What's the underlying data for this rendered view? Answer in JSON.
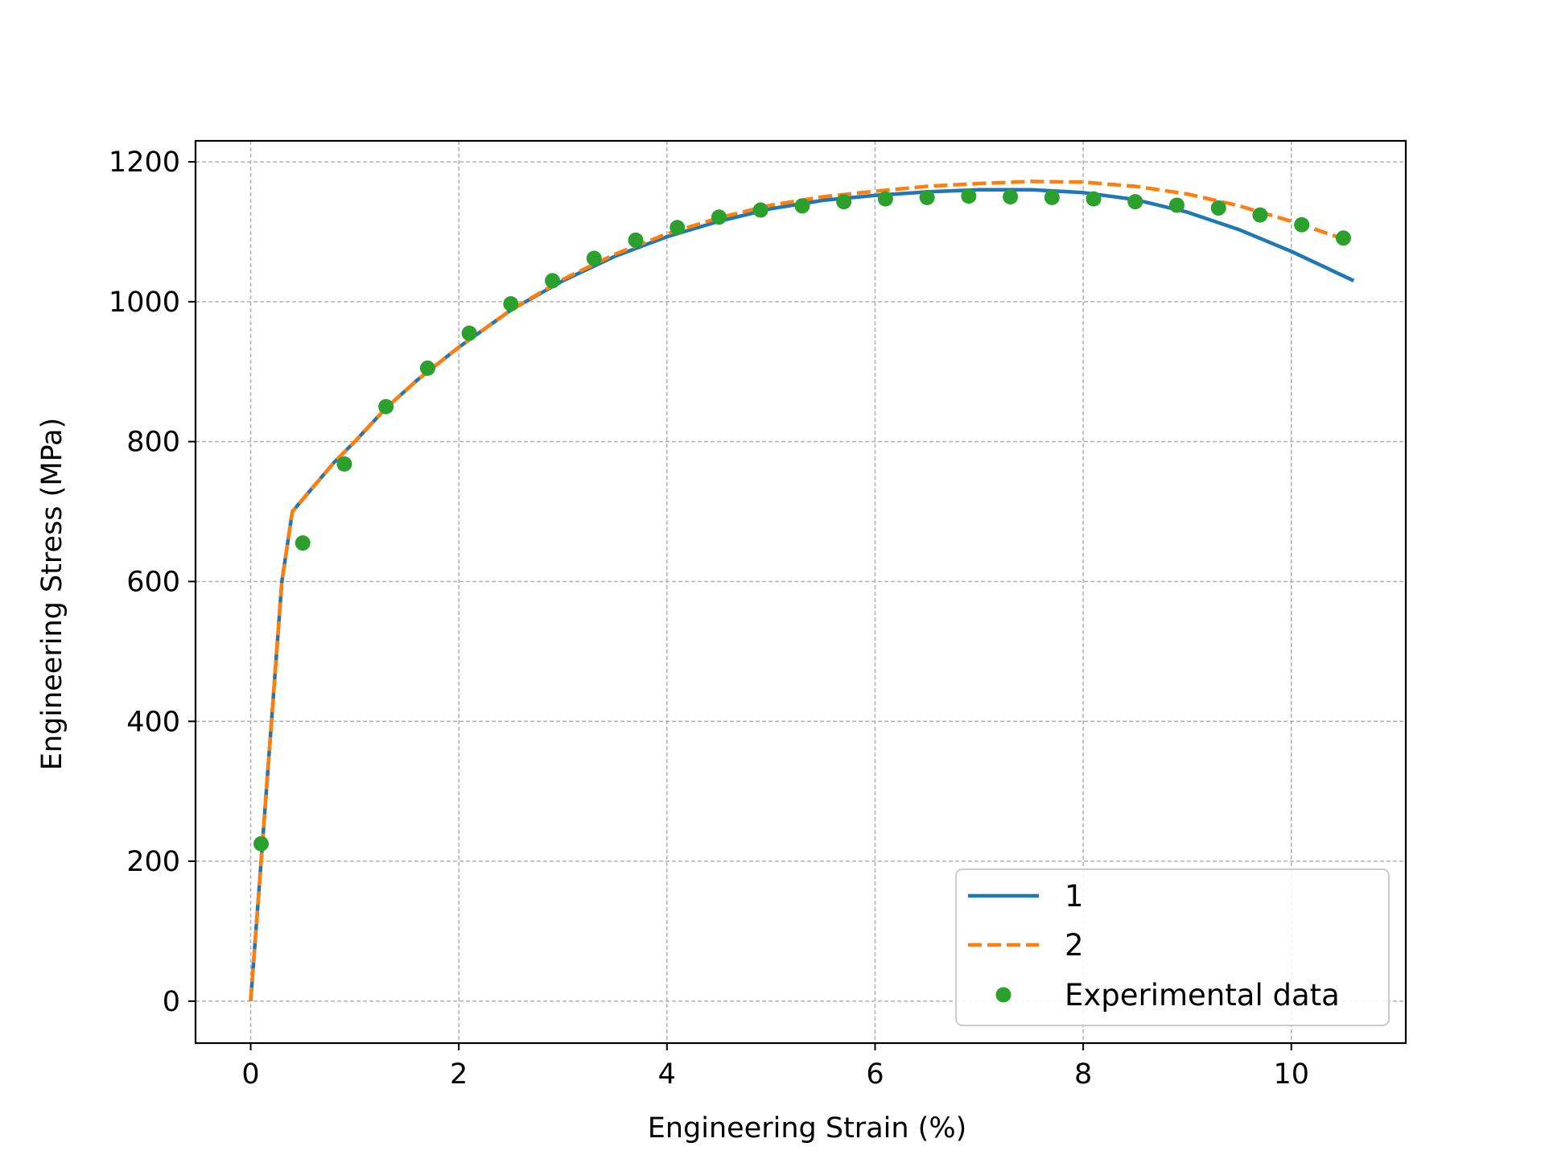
{
  "chart_data": {
    "type": "line",
    "title": "",
    "xlabel": "Engineering Strain (%)",
    "ylabel": "Engineering Stress (MPa)",
    "xlim": [
      -0.53,
      11.1
    ],
    "ylim": [
      -60,
      1230
    ],
    "x_ticks": [
      "0",
      "2",
      "4",
      "6",
      "8",
      "10"
    ],
    "y_ticks": [
      "0",
      "200",
      "400",
      "600",
      "800",
      "1000",
      "1200"
    ],
    "grid": true,
    "legend_position": "lower-right",
    "series": [
      {
        "name": "1",
        "style": "solid",
        "color": "#1f77b4",
        "x": [
          0,
          0.1,
          0.2,
          0.3,
          0.4,
          0.6,
          0.8,
          1.0,
          1.3,
          1.6,
          2.0,
          2.5,
          3.0,
          3.5,
          4.0,
          4.5,
          5.0,
          5.5,
          6.0,
          6.5,
          7.0,
          7.5,
          8.0,
          8.5,
          9.0,
          9.5,
          10.0,
          10.6
        ],
        "y": [
          0,
          200,
          400,
          600,
          700,
          735,
          770,
          800,
          848,
          888,
          935,
          988,
          1030,
          1065,
          1093,
          1115,
          1133,
          1145,
          1152,
          1157,
          1160,
          1160,
          1156,
          1146,
          1128,
          1103,
          1072,
          1030
        ]
      },
      {
        "name": "2",
        "style": "dashed",
        "color": "#ff7f0e",
        "x": [
          0,
          0.1,
          0.2,
          0.3,
          0.4,
          0.6,
          0.8,
          1.0,
          1.3,
          1.6,
          2.0,
          2.5,
          3.0,
          3.5,
          4.0,
          4.5,
          5.0,
          5.5,
          6.0,
          6.5,
          7.0,
          7.5,
          8.0,
          8.5,
          9.0,
          9.5,
          10.0,
          10.5
        ],
        "y": [
          0,
          200,
          400,
          600,
          700,
          735,
          770,
          800,
          848,
          888,
          935,
          988,
          1032,
          1068,
          1097,
          1120,
          1138,
          1150,
          1158,
          1165,
          1169,
          1172,
          1171,
          1165,
          1154,
          1137,
          1115,
          1090
        ]
      },
      {
        "name": "Experimental data",
        "style": "markers",
        "color": "#2ca02c",
        "x": [
          0.1,
          0.5,
          0.9,
          1.3,
          1.7,
          2.1,
          2.5,
          2.9,
          3.3,
          3.7,
          4.1,
          4.5,
          4.9,
          5.3,
          5.7,
          6.1,
          6.5,
          6.9,
          7.3,
          7.7,
          8.1,
          8.5,
          8.9,
          9.3,
          9.7,
          10.1,
          10.5
        ],
        "y": [
          225,
          655,
          768,
          850,
          905,
          955,
          997,
          1030,
          1062,
          1088,
          1106,
          1121,
          1131,
          1137,
          1143,
          1147,
          1149,
          1151,
          1150,
          1149,
          1147,
          1143,
          1138,
          1134,
          1124,
          1110,
          1091
        ]
      }
    ]
  }
}
